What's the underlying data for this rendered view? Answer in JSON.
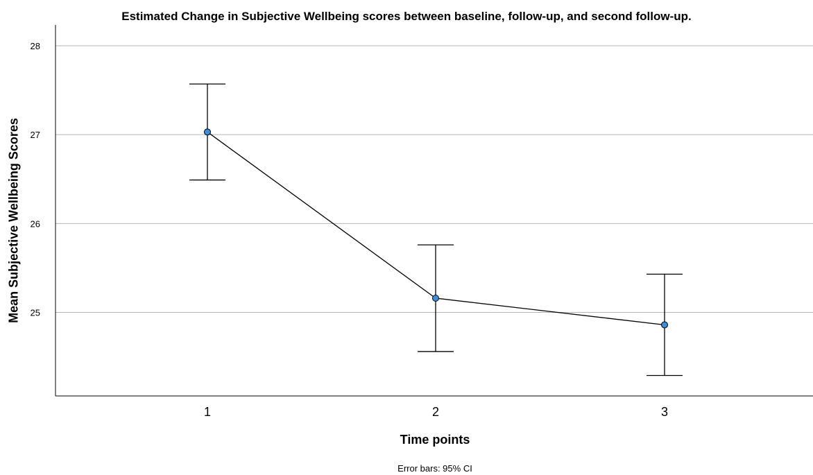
{
  "chart_data": {
    "type": "line",
    "title": "Estimated Change in Subjective Wellbeing scores between baseline, follow-up, and second follow-up.",
    "xlabel": "Time points",
    "ylabel": "Mean Subjective Wellbeing Scores",
    "footnote": "Error bars: 95% CI",
    "categories": [
      "1",
      "2",
      "3"
    ],
    "values": [
      27.03,
      25.16,
      24.86
    ],
    "ci_lower": [
      26.49,
      24.56,
      24.29
    ],
    "ci_upper": [
      27.57,
      25.76,
      25.43
    ],
    "ylim": [
      24.06,
      28.0
    ],
    "yticks": [
      25,
      26,
      27,
      28
    ],
    "grid": true,
    "colors": {
      "marker_fill": "#3a8fd6",
      "line": "#000000",
      "grid": "#b4b4b4"
    }
  }
}
